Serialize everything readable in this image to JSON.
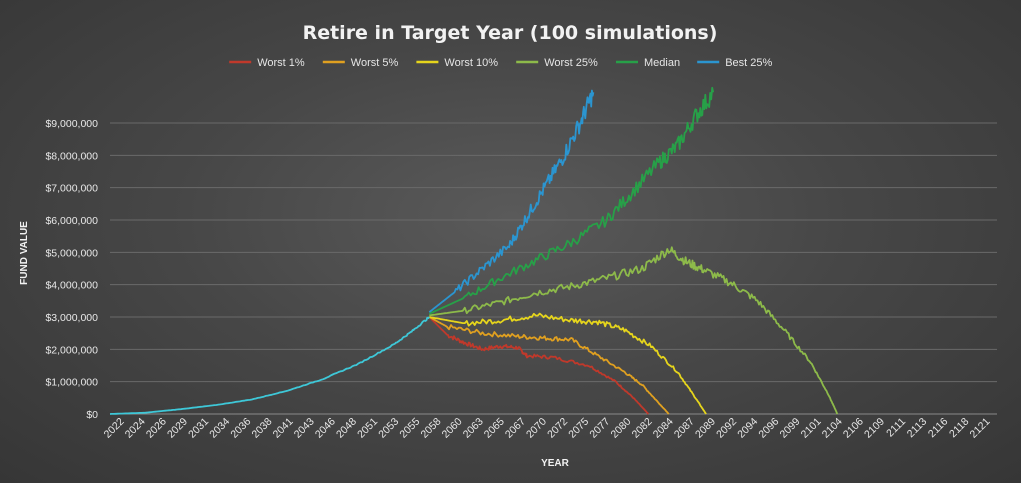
{
  "chart_data": {
    "type": "line",
    "title": "Retire in Target Year (100 simulations)",
    "xlabel": "YEAR",
    "ylabel": "FUND VALUE",
    "x_range": [
      2022,
      2122
    ],
    "ylim": [
      0,
      9000000
    ],
    "y_ticks": [
      "$0",
      "$1,000,000",
      "$2,000,000",
      "$3,000,000",
      "$4,000,000",
      "$5,000,000",
      "$6,000,000",
      "$7,000,000",
      "$8,000,000",
      "$9,000,000"
    ],
    "x_ticks": [
      "2022",
      "2024",
      "2026",
      "2029",
      "2031",
      "2034",
      "2036",
      "2038",
      "2041",
      "2043",
      "2046",
      "2048",
      "2051",
      "2053",
      "2055",
      "2058",
      "2060",
      "2063",
      "2065",
      "2067",
      "2070",
      "2072",
      "2075",
      "2077",
      "2080",
      "2082",
      "2084",
      "2087",
      "2089",
      "2092",
      "2094",
      "2096",
      "2099",
      "2101",
      "2104",
      "2106",
      "2109",
      "2111",
      "2113",
      "2116",
      "2118",
      "2121"
    ],
    "grid": true,
    "legend_position": "top",
    "accumulation": {
      "color": "#3ec8d8",
      "x": [
        2022,
        2026,
        2030,
        2034,
        2038,
        2042,
        2046,
        2050,
        2054,
        2056,
        2058
      ],
      "y": [
        0,
        40000,
        150000,
        280000,
        450000,
        720000,
        1080000,
        1550000,
        2150000,
        2550000,
        3000000
      ]
    },
    "series": [
      {
        "name": "Worst 1%",
        "color": "#c0392b",
        "x": [
          2058,
          2060,
          2062,
          2064,
          2066,
          2068,
          2069,
          2072,
          2076,
          2079,
          2081,
          2082.7
        ],
        "y": [
          3000000,
          2450000,
          2200000,
          2000000,
          2100000,
          2050000,
          1800000,
          1750000,
          1500000,
          1000000,
          500000,
          0
        ]
      },
      {
        "name": "Worst 5%",
        "color": "#e0a020",
        "x": [
          2058,
          2060,
          2064,
          2068,
          2071,
          2074,
          2077,
          2080,
          2082,
          2084,
          2085
        ],
        "y": [
          3000000,
          2700000,
          2500000,
          2400000,
          2350000,
          2300000,
          1800000,
          1300000,
          900000,
          300000,
          0
        ]
      },
      {
        "name": "Worst 10%",
        "color": "#e6d51c",
        "x": [
          2058,
          2062,
          2066,
          2070,
          2074,
          2077,
          2080,
          2083,
          2086,
          2088,
          2089.2
        ],
        "y": [
          3000000,
          2800000,
          2900000,
          3050000,
          2900000,
          2850000,
          2600000,
          2100000,
          1300000,
          500000,
          0
        ]
      },
      {
        "name": "Worst 25%",
        "color": "#8dba4a",
        "x": [
          2058,
          2062,
          2066,
          2070,
          2074,
          2078,
          2082,
          2085,
          2087,
          2089,
          2092,
          2095,
          2098,
          2101,
          2103,
          2104
        ],
        "y": [
          3050000,
          3200000,
          3450000,
          3750000,
          3950000,
          4200000,
          4500000,
          5100000,
          4700000,
          4450000,
          4050000,
          3500000,
          2600000,
          1600000,
          600000,
          0
        ]
      },
      {
        "name": "Median",
        "color": "#27a048",
        "x": [
          2058,
          2062,
          2066,
          2070,
          2074,
          2078,
          2081,
          2084,
          2086,
          2088,
          2090
        ],
        "y": [
          3100000,
          3600000,
          4200000,
          4750000,
          5300000,
          6000000,
          6900000,
          7800000,
          8300000,
          9200000,
          9950000
        ]
      },
      {
        "name": "Best 25%",
        "color": "#2b95d0",
        "x": [
          2058,
          2061,
          2064,
          2067,
          2069,
          2071,
          2073,
          2075,
          2076.5
        ],
        "y": [
          3150000,
          3800000,
          4500000,
          5200000,
          6100000,
          7000000,
          7900000,
          9000000,
          9950000
        ]
      }
    ]
  }
}
